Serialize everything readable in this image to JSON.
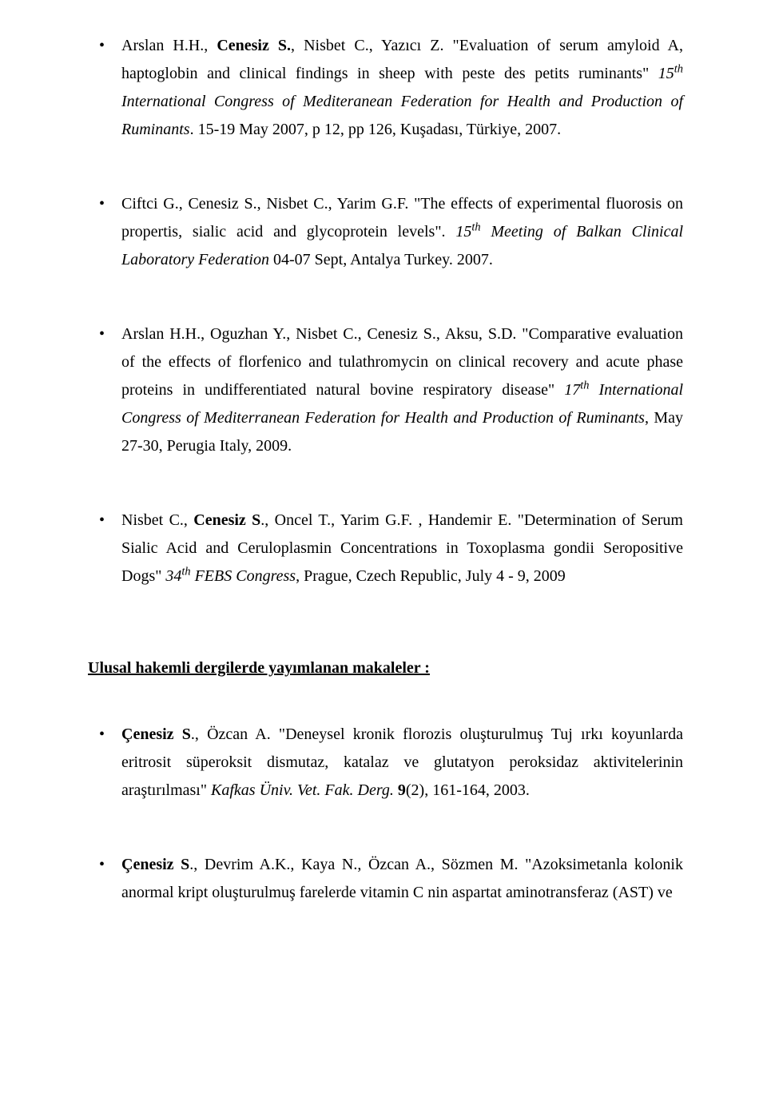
{
  "entries_top": [
    {
      "html": "Arslan H.H., <b>Cenesiz S.</b>, Nisbet C., Yazıcı Z. \"Evaluation of serum amyloid A, haptoglobin and clinical findings in sheep with peste des petits ruminants\" <i>15<sup>th</sup> International Congress of Mediteranean Federation for Health and Production of Ruminants</i>. 15-19 May 2007, p 12, pp 126, Kuşadası, Türkiye, 2007."
    },
    {
      "html": "Ciftci G., Cenesiz S., Nisbet C., Yarim G.F. \"The effects of experimental fluorosis on propertis, sialic acid and glycoprotein levels\". <i>15<sup>th</sup> Meeting of Balkan Clinical Laboratory Federation</i> 04-07 Sept, Antalya Turkey. 2007."
    },
    {
      "html": "Arslan H.H., Oguzhan Y., Nisbet C., Cenesiz S., Aksu, S.D. \"Comparative evaluation of the effects of florfenico and tulathromycin on clinical recovery and acute phase proteins in undifferentiated natural bovine respiratory disease\" <i>17<sup>th</sup> International Congress of Mediterranean Federation for Health and Production of Ruminants</i>, May 27-30,  Perugia Italy, 2009."
    },
    {
      "html": "Nisbet C., <b>Cenesiz S</b>., Oncel T., Yarim G.F. , Handemir E. \"Determination of Serum Sialic Acid and Ceruloplasmin Concentrations in Toxoplasma gondii Seropositive Dogs\" <i>34<sup>th</sup> FEBS Congress</i>, Prague, Czech Republic, July 4 - 9,  2009"
    }
  ],
  "section_heading": "Ulusal hakemli dergilerde yayımlanan makaleler :",
  "entries_bottom": [
    {
      "html": "<b>Çenesiz S</b>., Özcan A. \"Deneysel kronik florozis oluşturulmuş Tuj ırkı koyunlarda eritrosit süperoksit dismutaz, katalaz ve glutatyon peroksidaz aktivitelerinin araştırılması\" <i>Kafkas Üniv. Vet. Fak. Derg.</i> <b>9</b>(2), 161-164, 2003."
    },
    {
      "html": "<b>Çenesiz S</b>., Devrim A.K., Kaya N., Özcan A., Sözmen M. \"Azoksimetanla kolonik anormal kript oluşturulmuş farelerde vitamin C nin aspartat aminotransferaz (AST) ve"
    }
  ]
}
